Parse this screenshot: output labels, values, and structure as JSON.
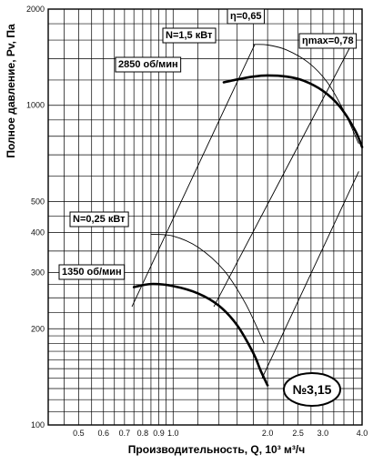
{
  "chart_data": {
    "type": "line",
    "xlabel": "Производительность, Q, 10³ м³/ч",
    "ylabel": "Полное давление, Pv, Па",
    "xscale": "log",
    "yscale": "log",
    "xlim": [
      0.4,
      4.0
    ],
    "ylim": [
      100,
      2000
    ],
    "grid": true,
    "x_ticks": [
      {
        "v": 0.5,
        "t": "0.5"
      },
      {
        "v": 0.6,
        "t": "0.6"
      },
      {
        "v": 0.7,
        "t": "0.7"
      },
      {
        "v": 0.8,
        "t": "0.8"
      },
      {
        "v": 0.9,
        "t": "0.9"
      },
      {
        "v": 1.0,
        "t": "1.0"
      },
      {
        "v": 2.0,
        "t": "2.0"
      },
      {
        "v": 2.5,
        "t": "2.5"
      },
      {
        "v": 3.0,
        "t": "3.0"
      },
      {
        "v": 4.0,
        "t": "4.0"
      }
    ],
    "y_ticks": [
      {
        "v": 100,
        "t": "100"
      },
      {
        "v": 200,
        "t": "200"
      },
      {
        "v": 300,
        "t": "300"
      },
      {
        "v": 400,
        "t": "400"
      },
      {
        "v": 500,
        "t": "500"
      },
      {
        "v": 1000,
        "t": "1000"
      },
      {
        "v": 2000,
        "t": "2000"
      }
    ],
    "series": [
      {
        "name": "2850 об/мин",
        "style": "bold",
        "x": [
          1.45,
          1.6,
          1.8,
          2.0,
          2.3,
          2.6,
          3.0,
          3.4,
          3.8,
          4.0
        ],
        "y": [
          1180,
          1205,
          1230,
          1240,
          1230,
          1195,
          1110,
          990,
          835,
          740
        ]
      },
      {
        "name": "1350 об/мин",
        "style": "bold",
        "x": [
          0.75,
          0.85,
          1.0,
          1.2,
          1.4,
          1.6,
          1.8,
          1.9,
          2.0
        ],
        "y": [
          270,
          276,
          272,
          258,
          236,
          205,
          168,
          148,
          133
        ]
      },
      {
        "name": "N=1,5 кВт",
        "style": "thin",
        "x": [
          1.8,
          2.0,
          2.3,
          2.7,
          3.1,
          3.5,
          3.9
        ],
        "y": [
          1550,
          1545,
          1490,
          1360,
          1180,
          960,
          760
        ]
      },
      {
        "name": "N=0,25 кВт",
        "style": "thin",
        "x": [
          0.85,
          1.0,
          1.2,
          1.45,
          1.7,
          1.95
        ],
        "y": [
          395,
          390,
          360,
          305,
          240,
          180
        ]
      },
      {
        "name": "η=0,65",
        "style": "thin",
        "x": [
          0.74,
          1.82
        ],
        "y": [
          235,
          1550
        ]
      },
      {
        "name": "ηmax=0,78",
        "style": "thin",
        "x": [
          1.35,
          3.7
        ],
        "y": [
          235,
          1550
        ]
      },
      {
        "name": "",
        "style": "thin",
        "x": [
          1.92,
          3.9
        ],
        "y": [
          140,
          620
        ]
      }
    ],
    "annotations": [
      {
        "text": "η=0,65",
        "boxed": true
      },
      {
        "text": "N=1,5 кВт",
        "boxed": true
      },
      {
        "text": "ηmax=0,78",
        "boxed": true
      },
      {
        "text": "2850 об/мин",
        "boxed": true
      },
      {
        "text": "N=0,25 кВт",
        "boxed": true
      },
      {
        "text": "1350 об/мин",
        "boxed": true
      }
    ],
    "badge": "№3,15"
  }
}
